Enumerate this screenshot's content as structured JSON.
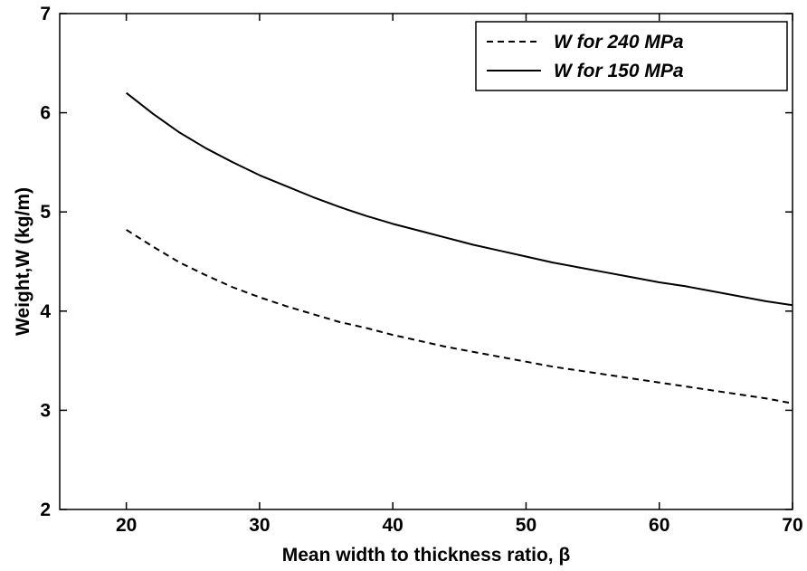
{
  "chart_data": {
    "type": "line",
    "xlabel": "Mean width to thickness ratio,  β",
    "ylabel": "Weight,W (kg/m)",
    "xlim": [
      15,
      70
    ],
    "ylim": [
      2,
      7
    ],
    "xticks": [
      "20",
      "30",
      "40",
      "50",
      "60",
      "70"
    ],
    "yticks": [
      "2",
      "3",
      "4",
      "5",
      "6",
      "7"
    ],
    "xtick_values": [
      20,
      30,
      40,
      50,
      60,
      70
    ],
    "ytick_values": [
      2,
      3,
      4,
      5,
      6,
      7
    ],
    "grid": false,
    "legend_position": "top-right",
    "series": [
      {
        "name": "W for 240 MPa",
        "style": "dashed",
        "color": "#000000",
        "x": [
          20,
          22,
          24,
          26,
          28,
          30,
          32,
          34,
          36,
          38,
          40,
          42,
          44,
          46,
          48,
          50,
          52,
          54,
          56,
          58,
          60,
          62,
          64,
          66,
          68,
          70
        ],
        "y": [
          4.82,
          4.65,
          4.49,
          4.36,
          4.24,
          4.14,
          4.05,
          3.97,
          3.89,
          3.83,
          3.76,
          3.7,
          3.64,
          3.59,
          3.54,
          3.49,
          3.44,
          3.4,
          3.36,
          3.32,
          3.28,
          3.24,
          3.2,
          3.16,
          3.12,
          3.07
        ]
      },
      {
        "name": "W for 150 MPa",
        "style": "solid",
        "color": "#000000",
        "x": [
          20,
          22,
          24,
          26,
          28,
          30,
          32,
          34,
          36,
          38,
          40,
          42,
          44,
          46,
          48,
          50,
          52,
          54,
          56,
          58,
          60,
          62,
          64,
          66,
          68,
          70
        ],
        "y": [
          6.2,
          5.99,
          5.8,
          5.64,
          5.5,
          5.37,
          5.26,
          5.15,
          5.05,
          4.96,
          4.88,
          4.81,
          4.74,
          4.67,
          4.61,
          4.55,
          4.49,
          4.44,
          4.39,
          4.34,
          4.29,
          4.25,
          4.2,
          4.15,
          4.1,
          4.06
        ]
      }
    ]
  }
}
